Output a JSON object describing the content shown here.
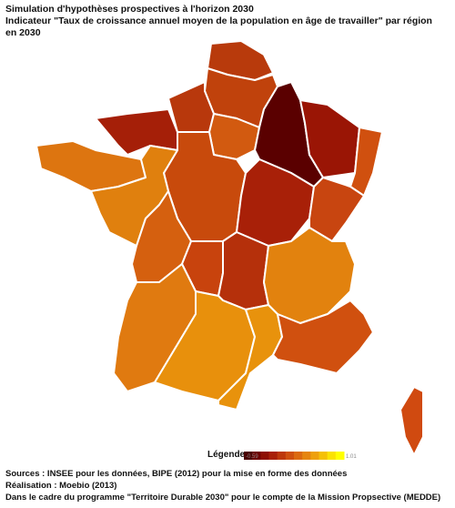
{
  "header": {
    "title": "Simulation d'hypothèses prospectives à l'horizon 2030",
    "subtitle": "Indicateur \"Taux de croissance annuel moyen de la population en âge de travailler\" par région en 2030"
  },
  "legend": {
    "title": "Légende",
    "min": -0.59,
    "max": 1.01,
    "colors": [
      "#4a0000",
      "#6e0000",
      "#8e1004",
      "#a82008",
      "#bd380b",
      "#cf500f",
      "#dc6a10",
      "#e6850f",
      "#eea00c",
      "#f5c006",
      "#fbe202",
      "#ffff00"
    ]
  },
  "sources": [
    "Sources : INSEE pour les données, BIPE (2012) pour la mise en forme des données",
    "Réalisation : Moebio (2013)",
    "Dans le cadre du programme \"Territoire Durable 2030\" pour le compte de la Mission Propsective (MEDDE)"
  ]
}
